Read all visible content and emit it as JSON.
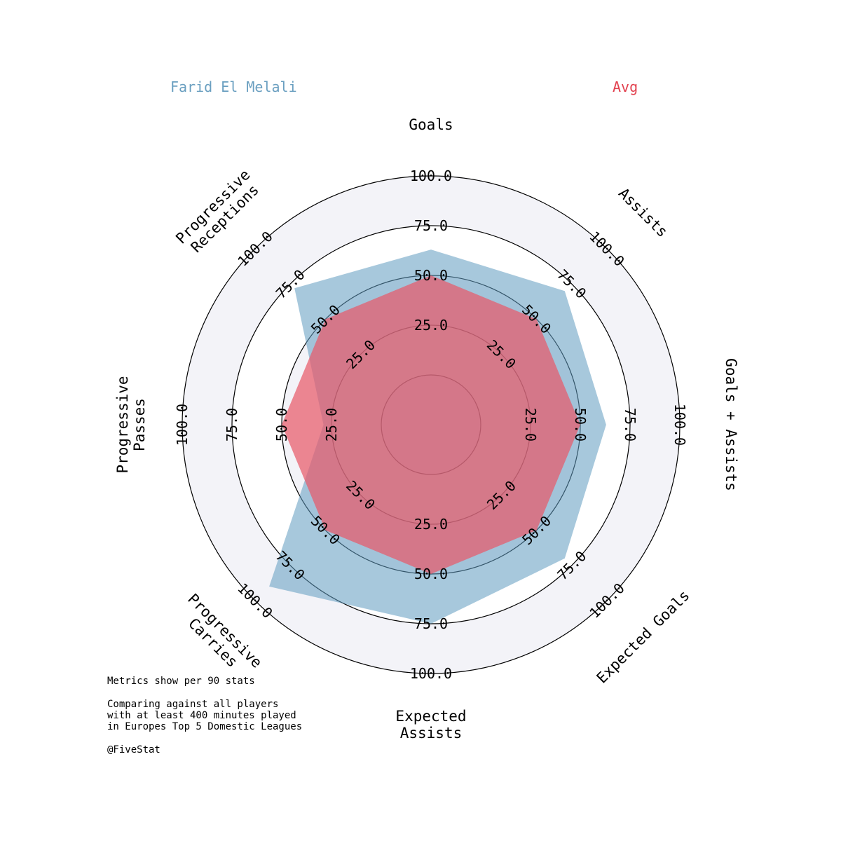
{
  "legend": {
    "player": "Farid El Melali",
    "average": "Avg"
  },
  "colors": {
    "player": "#5f9ac0",
    "average": "#e85a6a",
    "player_text": "#6a9fc0",
    "average_text": "#e2414f",
    "ring_background": "#f3f3f8"
  },
  "notes": {
    "line1": "Metrics show per 90 stats",
    "line2": "Comparing against all players",
    "line3": "with at least 400 minutes played",
    "line4": "in Europes Top 5 Domestic Leagues",
    "credit": "@FiveStat"
  },
  "chart_data": {
    "type": "radar",
    "categories": [
      "Goals",
      "Assists",
      "Goals + Assists",
      "Expected Goals",
      "Expected\nAssists",
      "Progressive\nCarries",
      "Progressive\nPasses",
      "Progressive\nReceptions"
    ],
    "radial_ticks": [
      "25.0",
      "50.0",
      "75.0",
      "100.0"
    ],
    "rlim": [
      0,
      100
    ],
    "series": [
      {
        "name": "Farid El Melali",
        "values": [
          63,
          70,
          63,
          70,
          75,
          90,
          29,
          72
        ]
      },
      {
        "name": "Avg",
        "values": [
          50,
          50,
          50,
          50,
          50,
          50,
          50,
          50
        ]
      }
    ]
  }
}
